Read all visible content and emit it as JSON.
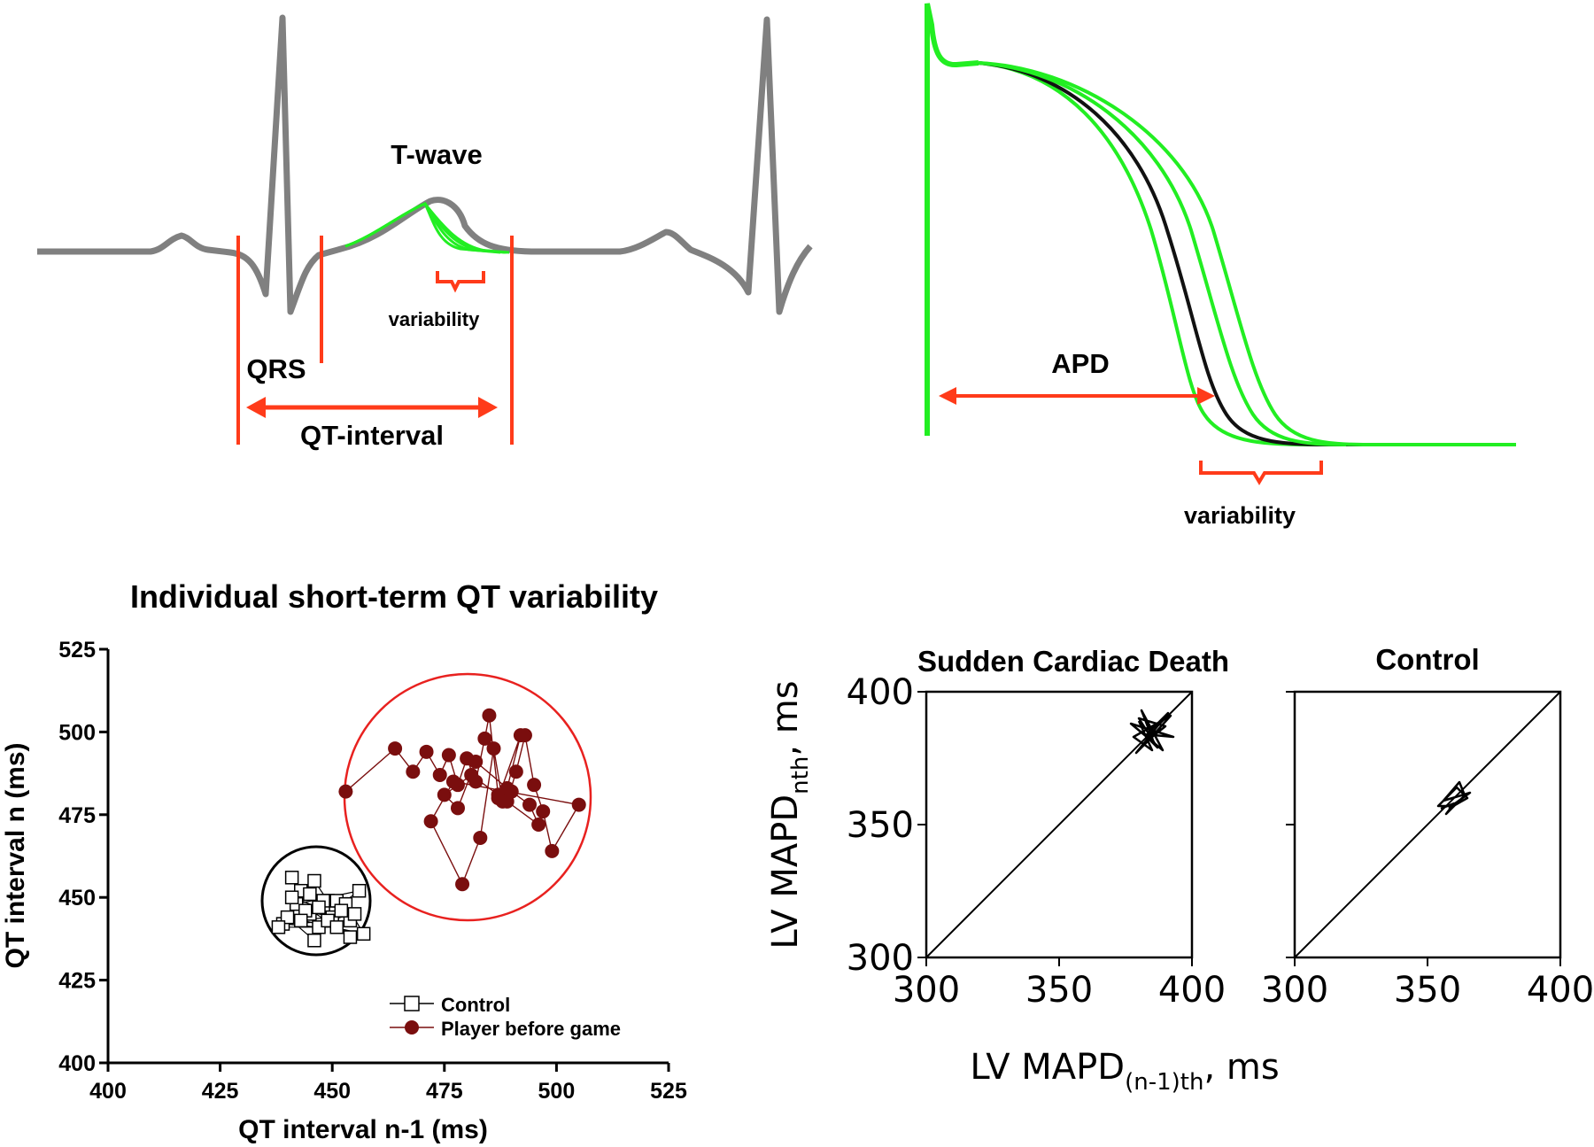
{
  "ecg_panel": {
    "t_wave_label": "T-wave",
    "variability_label": "variability",
    "qrs_label": "QRS",
    "qt_interval_label": "QT-interval"
  },
  "ap_panel": {
    "apd_label": "APD",
    "variability_label": "variability"
  },
  "colors": {
    "ecg_trace": "#808080",
    "variant_trace": "#22ee22",
    "annotation": "#ff3b1a",
    "player": "#7a0e0e",
    "control_circle": "#000000",
    "player_circle": "#e8211f"
  },
  "chart_data": [
    {
      "type": "scatter",
      "title": "Individual short-term QT variability",
      "xlabel": "QT interval n-1 (ms)",
      "ylabel": "QT interval n (ms)",
      "xlim": [
        400,
        525
      ],
      "ylim": [
        400,
        525
      ],
      "xticks": [
        "400",
        "425",
        "450",
        "475",
        "500",
        "525"
      ],
      "yticks": [
        "400",
        "425",
        "450",
        "475",
        "500",
        "525"
      ],
      "series": [
        {
          "name": "Control",
          "marker": "open-square",
          "x": [
            441,
            443,
            446,
            449,
            452,
            456,
            442,
            445,
            448,
            451,
            454,
            439,
            447,
            450,
            444,
            453,
            457,
            440,
            446,
            449,
            455,
            443,
            451,
            438,
            448,
            452,
            445,
            454,
            441,
            447
          ],
          "y": [
            456,
            452,
            455,
            449,
            448,
            452,
            448,
            445,
            447,
            449,
            443,
            442,
            441,
            444,
            446,
            448,
            439,
            444,
            437,
            443,
            445,
            443,
            441,
            441,
            449,
            446,
            451,
            438,
            450,
            447
          ]
        },
        {
          "name": "Player before game",
          "marker": "filled-circle",
          "x": [
            453,
            464,
            468,
            471,
            474,
            476,
            478,
            480,
            482,
            484,
            485,
            487,
            489,
            491,
            493,
            495,
            497,
            499,
            505,
            477,
            472,
            479,
            483,
            486,
            488,
            490,
            494,
            496,
            481,
            475,
            478,
            482,
            489,
            492,
            487
          ],
          "y": [
            482,
            495,
            488,
            494,
            487,
            493,
            484,
            492,
            485,
            498,
            505,
            481,
            479,
            488,
            499,
            484,
            476,
            464,
            478,
            485,
            473,
            454,
            468,
            495,
            479,
            482,
            478,
            472,
            487,
            481,
            477,
            491,
            483,
            499,
            480
          ]
        }
      ],
      "legend": [
        "Control",
        "Player before game"
      ],
      "legend_position": "bottom-right",
      "annotations": [
        "circle around Control cluster",
        "circle around Player before game cluster"
      ]
    },
    {
      "type": "line",
      "title": "Sudden Cardiac Death",
      "xlabel": "LV MAPD(n-1)th, ms",
      "ylabel": "LV MAPDnth, ms",
      "xlim": [
        300,
        400
      ],
      "ylim": [
        300,
        400
      ],
      "xticks": [
        "300",
        "350",
        "400"
      ],
      "yticks": [
        "300",
        "350",
        "400"
      ],
      "identity_line": true,
      "series": [
        {
          "name": "MAPD sequence",
          "x": [
            380,
            385,
            378,
            392,
            383,
            388,
            379,
            391,
            384,
            386,
            381,
            389,
            377,
            393,
            382,
            387,
            380,
            390,
            385
          ],
          "y": [
            389,
            378,
            383,
            391,
            381,
            386,
            377,
            392,
            385,
            380,
            393,
            378,
            388,
            383,
            384,
            379,
            390,
            387,
            383
          ]
        }
      ]
    },
    {
      "type": "line",
      "title": "Control",
      "xlabel": "LV MAPD(n-1)th, ms",
      "ylabel": "LV MAPDnth, ms",
      "xlim": [
        300,
        400
      ],
      "ylim": [
        300,
        400
      ],
      "xticks": [
        "300",
        "350",
        "400"
      ],
      "yticks": [
        "300",
        "350",
        "400"
      ],
      "identity_line": true,
      "series": [
        {
          "name": "MAPD sequence",
          "x": [
            355,
            360,
            357,
            364,
            362,
            356,
            366,
            359,
            354,
            361,
            365,
            358
          ],
          "y": [
            356,
            358,
            354,
            361,
            366,
            359,
            362,
            357,
            357,
            364,
            360,
            356
          ]
        }
      ]
    }
  ],
  "panel3_labels": {
    "ylabel_main": "LV MAPD",
    "ylabel_sub": "nth",
    "ylabel_unit": ", ms",
    "xlabel_main": "LV MAPD",
    "xlabel_sub": "(n-1)th",
    "xlabel_unit": ", ms"
  }
}
